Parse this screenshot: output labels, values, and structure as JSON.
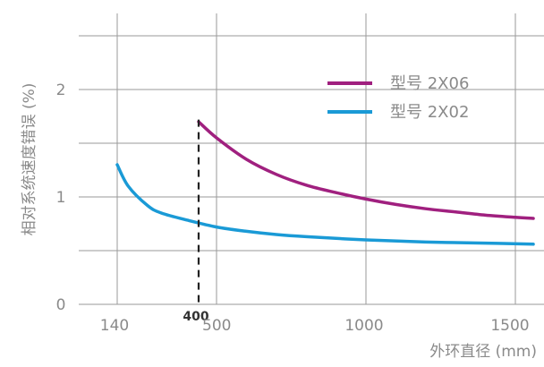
{
  "chart_data": {
    "type": "line",
    "title": "",
    "xlabel": "外环直径 (mm)",
    "ylabel": "相对系统速度错误 (%)",
    "x_ticks": [
      {
        "value": 140,
        "label": "140"
      },
      {
        "value": 500,
        "label": "500"
      },
      {
        "value": 1000,
        "label": "1000"
      },
      {
        "value": 1500,
        "label": "1500"
      }
    ],
    "y_ticks": [
      {
        "value": 0,
        "label": "0"
      },
      {
        "value": 1,
        "label": "1"
      },
      {
        "value": 2,
        "label": "2"
      }
    ],
    "ylim": [
      0,
      2.6
    ],
    "grid": true,
    "legend_position": "top-right",
    "annotation": {
      "x": 440,
      "label": "400"
    },
    "series": [
      {
        "name": "型号 2X06",
        "color": "#a0207f",
        "points": [
          [
            440,
            1.7
          ],
          [
            500,
            1.55
          ],
          [
            600,
            1.35
          ],
          [
            700,
            1.21
          ],
          [
            800,
            1.11
          ],
          [
            900,
            1.04
          ],
          [
            1000,
            0.98
          ],
          [
            1100,
            0.93
          ],
          [
            1200,
            0.89
          ],
          [
            1300,
            0.86
          ],
          [
            1400,
            0.83
          ],
          [
            1500,
            0.81
          ],
          [
            1560,
            0.8
          ]
        ]
      },
      {
        "name": "型号 2X02",
        "color": "#1a9ad6",
        "points": [
          [
            140,
            1.3
          ],
          [
            180,
            1.1
          ],
          [
            250,
            0.92
          ],
          [
            300,
            0.85
          ],
          [
            400,
            0.78
          ],
          [
            500,
            0.72
          ],
          [
            600,
            0.68
          ],
          [
            700,
            0.65
          ],
          [
            800,
            0.63
          ],
          [
            1000,
            0.6
          ],
          [
            1200,
            0.58
          ],
          [
            1400,
            0.57
          ],
          [
            1560,
            0.56
          ]
        ]
      }
    ]
  }
}
